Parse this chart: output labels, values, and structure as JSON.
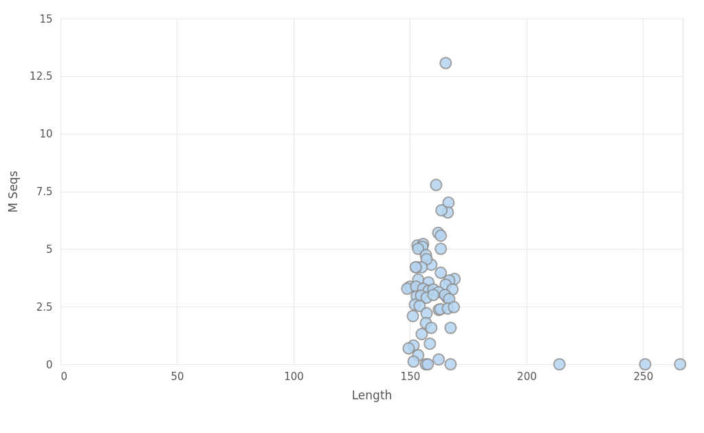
{
  "chart_data": {
    "type": "scatter",
    "xlabel": "Length",
    "ylabel": "M Seqs",
    "x": [
      165.3,
      161.2,
      166.5,
      166.2,
      163.5,
      162.1,
      163.2,
      163.2,
      153.2,
      155.6,
      155.3,
      153.5,
      156.8,
      159.1,
      157.1,
      152.9,
      155,
      152.4,
      163.2,
      169.1,
      166.8,
      165.3,
      153.5,
      157.9,
      150,
      148.8,
      152.6,
      155.6,
      157.9,
      160,
      168.2,
      162.3,
      152.9,
      154.7,
      157.1,
      160,
      165.9,
      165,
      166.8,
      152.1,
      154.1,
      162.3,
      163,
      166.2,
      168.8,
      157.1,
      151.2,
      156.8,
      159.1,
      167.4,
      155,
      158.5,
      151.5,
      149.4,
      153.5,
      151.5,
      162.3,
      156.8,
      157.6,
      167.4,
      214.1,
      250.9,
      265.9
    ],
    "values": [
      13.07,
      7.78,
      7.01,
      6.59,
      6.68,
      5.7,
      5.58,
      5.01,
      5.16,
      5.22,
      5.1,
      5.01,
      4.74,
      4.32,
      4.56,
      4.21,
      4.21,
      4.21,
      3.97,
      3.7,
      3.64,
      3.46,
      3.67,
      3.55,
      3.37,
      3.28,
      3.37,
      3.28,
      3.19,
      3.25,
      3.25,
      3.13,
      2.95,
      2.98,
      2.89,
      3.01,
      2.89,
      3.01,
      2.83,
      2.59,
      2.53,
      2.36,
      2.39,
      2.42,
      2.48,
      2.21,
      2.09,
      1.79,
      1.58,
      1.58,
      1.31,
      0.89,
      0.81,
      0.69,
      0.39,
      0.12,
      0.21,
      0,
      0,
      0,
      0,
      0,
      0
    ],
    "color": "#b5d5f2",
    "marker": "circle",
    "grid": true,
    "xlim": [
      0,
      267
    ],
    "xticks": [
      0,
      50,
      100,
      150,
      200,
      250
    ],
    "ylim": [
      0,
      15
    ],
    "yticks": [
      0,
      2.5,
      5,
      7.5,
      10,
      12.5,
      15
    ]
  }
}
